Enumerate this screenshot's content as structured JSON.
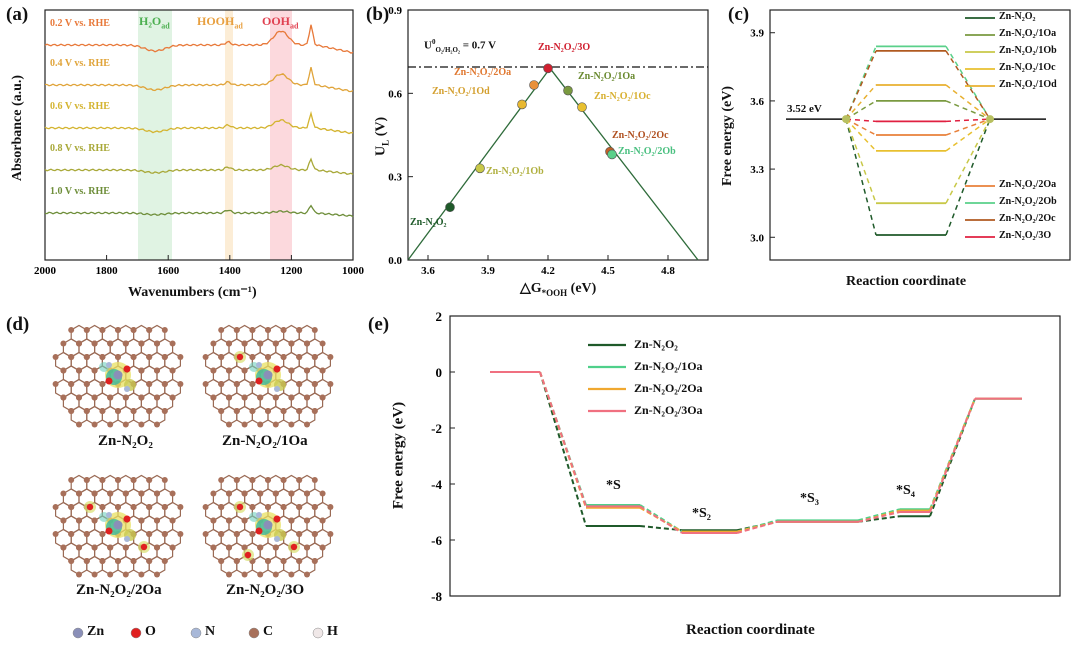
{
  "panel_a": {
    "label": "(a)",
    "xlabel": "Wavenumbers (cm⁻¹)",
    "ylabel": "Absorbance (a.u.)",
    "xticks": [
      "2000",
      "1800",
      "1600",
      "1400",
      "1200",
      "1000"
    ],
    "band_h2o": "H₂O",
    "band_h2o_sub": "ad",
    "band_hooh": "HOOH",
    "band_hooh_sub": "ad",
    "band_ooh": "OOH",
    "band_ooh_sub": "ad",
    "spectra": [
      {
        "label": "0.2 V vs. RHE",
        "color": "#e8793a"
      },
      {
        "label": "0.4 V vs. RHE",
        "color": "#e0a43a"
      },
      {
        "label": "0.6 V vs. RHE",
        "color": "#d4b430"
      },
      {
        "label": "0.8 V vs. RHE",
        "color": "#a8a838"
      },
      {
        "label": "1.0 V vs. RHE",
        "color": "#6e8e3a"
      }
    ]
  },
  "panel_b": {
    "label": "(b)",
    "ylabel": "U",
    "ylabel_sub": "L",
    "ylabel_unit": " (V)",
    "xlabel": "△G",
    "xlabel_sub": "*OOH",
    "xlabel_unit": " (eV)",
    "ref_line": "U",
    "ref_sup": "0",
    "ref_sub": "O₂/H₂O₂",
    "ref_val": " = 0.7 V",
    "xticks": [
      "3.6",
      "3.9",
      "4.2",
      "4.5",
      "4.8"
    ],
    "yticks": [
      "0.0",
      "0.3",
      "0.6",
      "0.9"
    ]
  },
  "panel_c": {
    "label": "(c)",
    "ylabel": "Free energy (eV)",
    "xlabel": "Reaction coordinate",
    "yticks": [
      "3.0",
      "3.3",
      "3.6",
      "3.9"
    ],
    "ref_energy": "3.52 eV"
  },
  "panel_d": {
    "label": "(d)",
    "structures": [
      "Zn-N₂O₂",
      "Zn-N₂O₂/1Oa",
      "Zn-N₂O₂/2Oa",
      "Zn-N₂O₂/3O"
    ],
    "legend": [
      {
        "label": "Zn",
        "color": "#8a8fb8"
      },
      {
        "label": "O",
        "color": "#e02020"
      },
      {
        "label": "N",
        "color": "#a8b8d8"
      },
      {
        "label": "C",
        "color": "#a8705a"
      },
      {
        "label": "H",
        "color": "#f0e8e8"
      }
    ]
  },
  "panel_e": {
    "label": "(e)",
    "ylabel": "Free energy (eV)",
    "xlabel": "Reaction coordinate",
    "yticks": [
      "2",
      "0",
      "-2",
      "-4",
      "-6",
      "-8"
    ],
    "step_labels": [
      "*S",
      "*S₂",
      "*S₃",
      "*S₄"
    ],
    "legend": [
      {
        "label": "Zn-N₂O₂",
        "color": "#1f5a2a"
      },
      {
        "label": "Zn-N₂O₂/1Oa",
        "color": "#4fd08a"
      },
      {
        "label": "Zn-N₂O₂/2Oa",
        "color": "#f0a830"
      },
      {
        "label": "Zn-N₂O₂/3Oa",
        "color": "#f07080"
      }
    ]
  },
  "chart_data": [
    {
      "type": "scatter",
      "xlabel": "△G*OOH (eV)",
      "ylabel": "UL (V)",
      "xlim": [
        3.5,
        5.0
      ],
      "ylim": [
        0.0,
        0.9
      ],
      "points": [
        {
          "name": "Zn-N₂O₂",
          "x": 3.71,
          "y": 0.19,
          "color": "#1f5a2a"
        },
        {
          "name": "Zn-N₂O₂/1Ob",
          "x": 3.86,
          "y": 0.33,
          "color": "#c8c848"
        },
        {
          "name": "Zn-N₂O₂/1Od",
          "x": 4.07,
          "y": 0.56,
          "color": "#e8b830"
        },
        {
          "name": "Zn-N₂O₂/2Oa",
          "x": 4.13,
          "y": 0.63,
          "color": "#e8903a"
        },
        {
          "name": "Zn-N₂O₂/3O",
          "x": 4.2,
          "y": 0.69,
          "color": "#d02030"
        },
        {
          "name": "Zn-N₂O₂/1Oa",
          "x": 4.3,
          "y": 0.61,
          "color": "#7a9a40"
        },
        {
          "name": "Zn-N₂O₂/1Oc",
          "x": 4.37,
          "y": 0.55,
          "color": "#e8c030"
        },
        {
          "name": "Zn-N₂O₂/2Oc",
          "x": 4.51,
          "y": 0.39,
          "color": "#c06028"
        },
        {
          "name": "Zn-N₂O₂/2Ob",
          "x": 4.52,
          "y": 0.38,
          "color": "#5ad08a"
        }
      ]
    },
    {
      "type": "line",
      "ylabel": "Free energy (eV)",
      "xlabel": "Reaction coordinate",
      "ylim": [
        2.9,
        4.0
      ],
      "ref": 3.52,
      "series": [
        {
          "name": "Zn-N₂O₂",
          "value": 3.01,
          "color": "#1f5a2a"
        },
        {
          "name": "Zn-N₂O₂/1Oa",
          "value": 3.6,
          "color": "#7a9a40"
        },
        {
          "name": "Zn-N₂O₂/1Ob",
          "value": 3.15,
          "color": "#c8c848"
        },
        {
          "name": "Zn-N₂O₂/1Oc",
          "value": 3.38,
          "color": "#e8c030"
        },
        {
          "name": "Zn-N₂O₂/1Od",
          "value": 3.67,
          "color": "#e8b030"
        },
        {
          "name": "Zn-N₂O₂/2Oa",
          "value": 3.45,
          "color": "#e8803a"
        },
        {
          "name": "Zn-N₂O₂/2Ob",
          "value": 3.84,
          "color": "#5ad08a"
        },
        {
          "name": "Zn-N₂O₂/2Oc",
          "value": 3.82,
          "color": "#b05a20"
        },
        {
          "name": "Zn-N₂O₂/3O",
          "value": 3.51,
          "color": "#e02040"
        }
      ]
    },
    {
      "type": "line",
      "ylabel": "Free energy (eV)",
      "xlabel": "Reaction coordinate",
      "ylim": [
        -8,
        2
      ],
      "series": [
        {
          "name": "Zn-N₂O₂",
          "values": [
            0,
            -5.5,
            -5.65,
            -5.35,
            -5.15,
            -0.95
          ],
          "color": "#1f5a2a"
        },
        {
          "name": "Zn-N₂O₂/1Oa",
          "values": [
            0,
            -4.75,
            -5.7,
            -5.3,
            -4.9,
            -0.95
          ],
          "color": "#4fd08a"
        },
        {
          "name": "Zn-N₂O₂/2Oa",
          "values": [
            0,
            -4.85,
            -5.7,
            -5.35,
            -4.95,
            -0.95
          ],
          "color": "#f0a830"
        },
        {
          "name": "Zn-N₂O₂/3Oa",
          "values": [
            0,
            -4.8,
            -5.75,
            -5.35,
            -5.0,
            -0.95
          ],
          "color": "#f07080"
        }
      ]
    }
  ]
}
